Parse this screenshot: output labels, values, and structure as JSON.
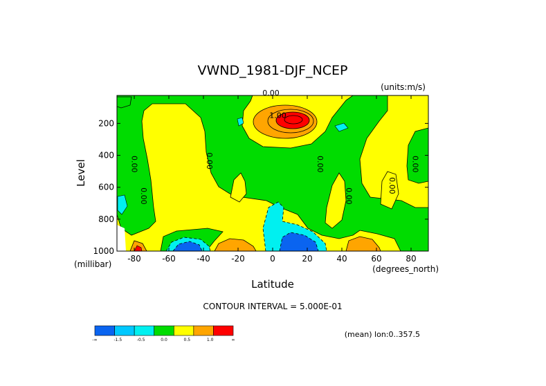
{
  "chart_data": {
    "type": "contour",
    "title": "VWND_1981-DJF_NCEP",
    "units_label": "(units:m/s)",
    "xlabel": "Latitude",
    "x_units": "(degrees_north)",
    "ylabel": "Level",
    "y_units": "(millibar)",
    "xlim": [
      -90,
      90
    ],
    "ylim": [
      1000,
      25
    ],
    "x_ticks": [
      -80,
      -60,
      -40,
      -20,
      0,
      20,
      40,
      60,
      80
    ],
    "y_ticks": [
      200,
      400,
      600,
      800,
      1000
    ],
    "x_tick_labels": [
      "-80",
      "-60",
      "-40",
      "-20",
      "0",
      "20",
      "40",
      "60",
      "80"
    ],
    "y_tick_labels": [
      "200",
      "400",
      "600",
      "800",
      "1000"
    ],
    "contour_interval_text": "CONTOUR INTERVAL = 5.000E-01",
    "mean_text": "(mean) lon:0..357.5",
    "colorbar": {
      "colors": [
        "#0a64f0",
        "#00c8ff",
        "#00f0f0",
        "#00dc00",
        "#ffff00",
        "#ffa500",
        "#ff0000"
      ],
      "labels": [
        "-∞",
        "-1.5",
        "-0.5",
        "0.0",
        "0.5",
        "1.0",
        "∞"
      ]
    },
    "contour_labels": [
      {
        "text": "0.00",
        "lat": -1.0,
        "lev": 25
      },
      {
        "text": "1.00",
        "lat": 3.0,
        "lev": 165
      },
      {
        "text": "0.00",
        "lat": -81.5,
        "lev": 455
      },
      {
        "text": "0.00",
        "lat": -76.0,
        "lev": 655
      },
      {
        "text": "0.00",
        "lat": -38.0,
        "lev": 435
      },
      {
        "text": "0.00",
        "lat": 26.0,
        "lev": 455
      },
      {
        "text": "0.00",
        "lat": 42.5,
        "lev": 655
      },
      {
        "text": "0.00",
        "lat": 67.5,
        "lev": 590
      },
      {
        "text": "0.00",
        "lat": 81.0,
        "lev": 455
      }
    ],
    "features": [
      {
        "name": "positive-max-upper",
        "lat": 12,
        "lev": 150,
        "approx_value": 2.0
      },
      {
        "name": "negative-min-sfc-a",
        "lat": 12,
        "lev": 960,
        "approx_value": -2.0
      },
      {
        "name": "negative-min-sfc-b",
        "lat": -52,
        "lev": 975,
        "approx_value": -1.5
      },
      {
        "name": "positive-max-sfc-a",
        "lat": -20,
        "lev": 975,
        "approx_value": 1.0
      },
      {
        "name": "positive-max-sfc-b",
        "lat": 50,
        "lev": 950,
        "approx_value": 1.0
      }
    ],
    "grid": false
  }
}
